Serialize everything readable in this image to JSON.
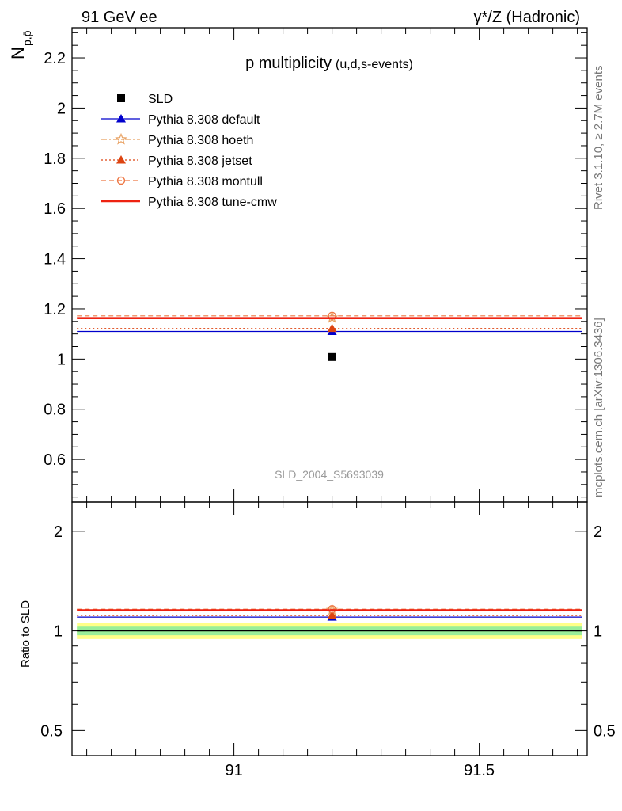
{
  "header": {
    "energy_label": "91 GeV ee",
    "process_label": "γ*/Z (Hadronic)"
  },
  "side_text": {
    "rivet": "Rivet 3.1.10, ≥ 2.7M events",
    "mcplots": "mcplots.cern.ch [arXiv:1306.3436]"
  },
  "chart_data": [
    {
      "type": "scatter",
      "title_main": "p multiplicity",
      "title_sub": "(u,d,s-events)",
      "ylabel_main": "N",
      "ylabel_sub": "p,p̄",
      "watermark": "SLD_2004_S5693039",
      "xlim": [
        90.67,
        91.72
      ],
      "ylim": [
        0.43,
        2.32
      ],
      "yticks": [
        0.6,
        0.8,
        1,
        1.2,
        1.4,
        1.6,
        1.8,
        2,
        2.2
      ],
      "ytick_labels": [
        "0.6",
        "0.8",
        "1",
        "1.2",
        "1.4",
        "1.6",
        "1.8",
        "2",
        "2.2"
      ],
      "legend_position": "top-left",
      "series": [
        {
          "name": "SLD",
          "color": "#000000",
          "marker": "square",
          "line": "none",
          "x": [
            91.2
          ],
          "y": [
            1.008
          ],
          "span": null
        },
        {
          "name": "Pythia 8.308 default",
          "color": "#0000cc",
          "marker": "triangle",
          "line": "solid",
          "x": [
            91.2
          ],
          "y": [
            1.11
          ],
          "span": [
            90.68,
            91.71
          ]
        },
        {
          "name": "Pythia 8.308 hoeth",
          "color": "#e8a060",
          "marker": "star",
          "line": "dashdot",
          "x": [
            91.2
          ],
          "y": [
            1.165
          ],
          "span": [
            90.68,
            91.71
          ]
        },
        {
          "name": "Pythia 8.308 jetset",
          "color": "#dd4411",
          "marker": "triangle",
          "line": "dotted",
          "x": [
            91.2
          ],
          "y": [
            1.122
          ],
          "span": [
            90.68,
            91.71
          ]
        },
        {
          "name": "Pythia 8.308 montull",
          "color": "#ee7744",
          "marker": "circle-open",
          "line": "dashed",
          "x": [
            91.2
          ],
          "y": [
            1.172
          ],
          "span": [
            90.68,
            91.71
          ]
        },
        {
          "name": "Pythia 8.308 tune-cmw",
          "color": "#ee2211",
          "marker": "none",
          "line": "solid-thick",
          "x": [
            91.2
          ],
          "y": [
            1.163
          ],
          "span": [
            90.68,
            91.71
          ]
        }
      ]
    },
    {
      "type": "scatter",
      "ylabel": "Ratio to SLD",
      "xlim": [
        90.67,
        91.72
      ],
      "ylim": [
        0.42,
        2.45
      ],
      "log_y": true,
      "xticks": [
        91,
        91.5
      ],
      "xtick_labels": [
        "91",
        "91.5"
      ],
      "yticks": [
        0.5,
        1,
        2
      ],
      "ytick_labels": [
        "0.5",
        "1",
        "2"
      ],
      "bands": [
        {
          "color": "#ffff88",
          "lo": 0.945,
          "hi": 1.055
        },
        {
          "color": "#99ee99",
          "lo": 0.97,
          "hi": 1.03
        }
      ],
      "series": [
        {
          "name": "SLD",
          "color": "#000000",
          "line": "solid",
          "x": [
            91.2
          ],
          "y": [
            1.0
          ],
          "span": [
            90.68,
            91.71
          ],
          "marker": "none"
        },
        {
          "name": "Pythia 8.308 default",
          "color": "#0000cc",
          "marker": "triangle",
          "line": "solid",
          "x": [
            91.2
          ],
          "y": [
            1.101
          ],
          "span": [
            90.68,
            91.71
          ]
        },
        {
          "name": "Pythia 8.308 hoeth",
          "color": "#e8a060",
          "marker": "star",
          "line": "dashdot",
          "x": [
            91.2
          ],
          "y": [
            1.156
          ],
          "span": [
            90.68,
            91.71
          ]
        },
        {
          "name": "Pythia 8.308 jetset",
          "color": "#dd4411",
          "marker": "triangle",
          "line": "dotted",
          "x": [
            91.2
          ],
          "y": [
            1.113
          ],
          "span": [
            90.68,
            91.71
          ]
        },
        {
          "name": "Pythia 8.308 montull",
          "color": "#ee7744",
          "marker": "circle-open",
          "line": "dashed",
          "x": [
            91.2
          ],
          "y": [
            1.163
          ],
          "span": [
            90.68,
            91.71
          ]
        },
        {
          "name": "Pythia 8.308 tune-cmw",
          "color": "#ee2211",
          "marker": "none",
          "line": "solid-thick",
          "x": [
            91.2
          ],
          "y": [
            1.154
          ],
          "span": [
            90.68,
            91.71
          ]
        }
      ]
    }
  ]
}
